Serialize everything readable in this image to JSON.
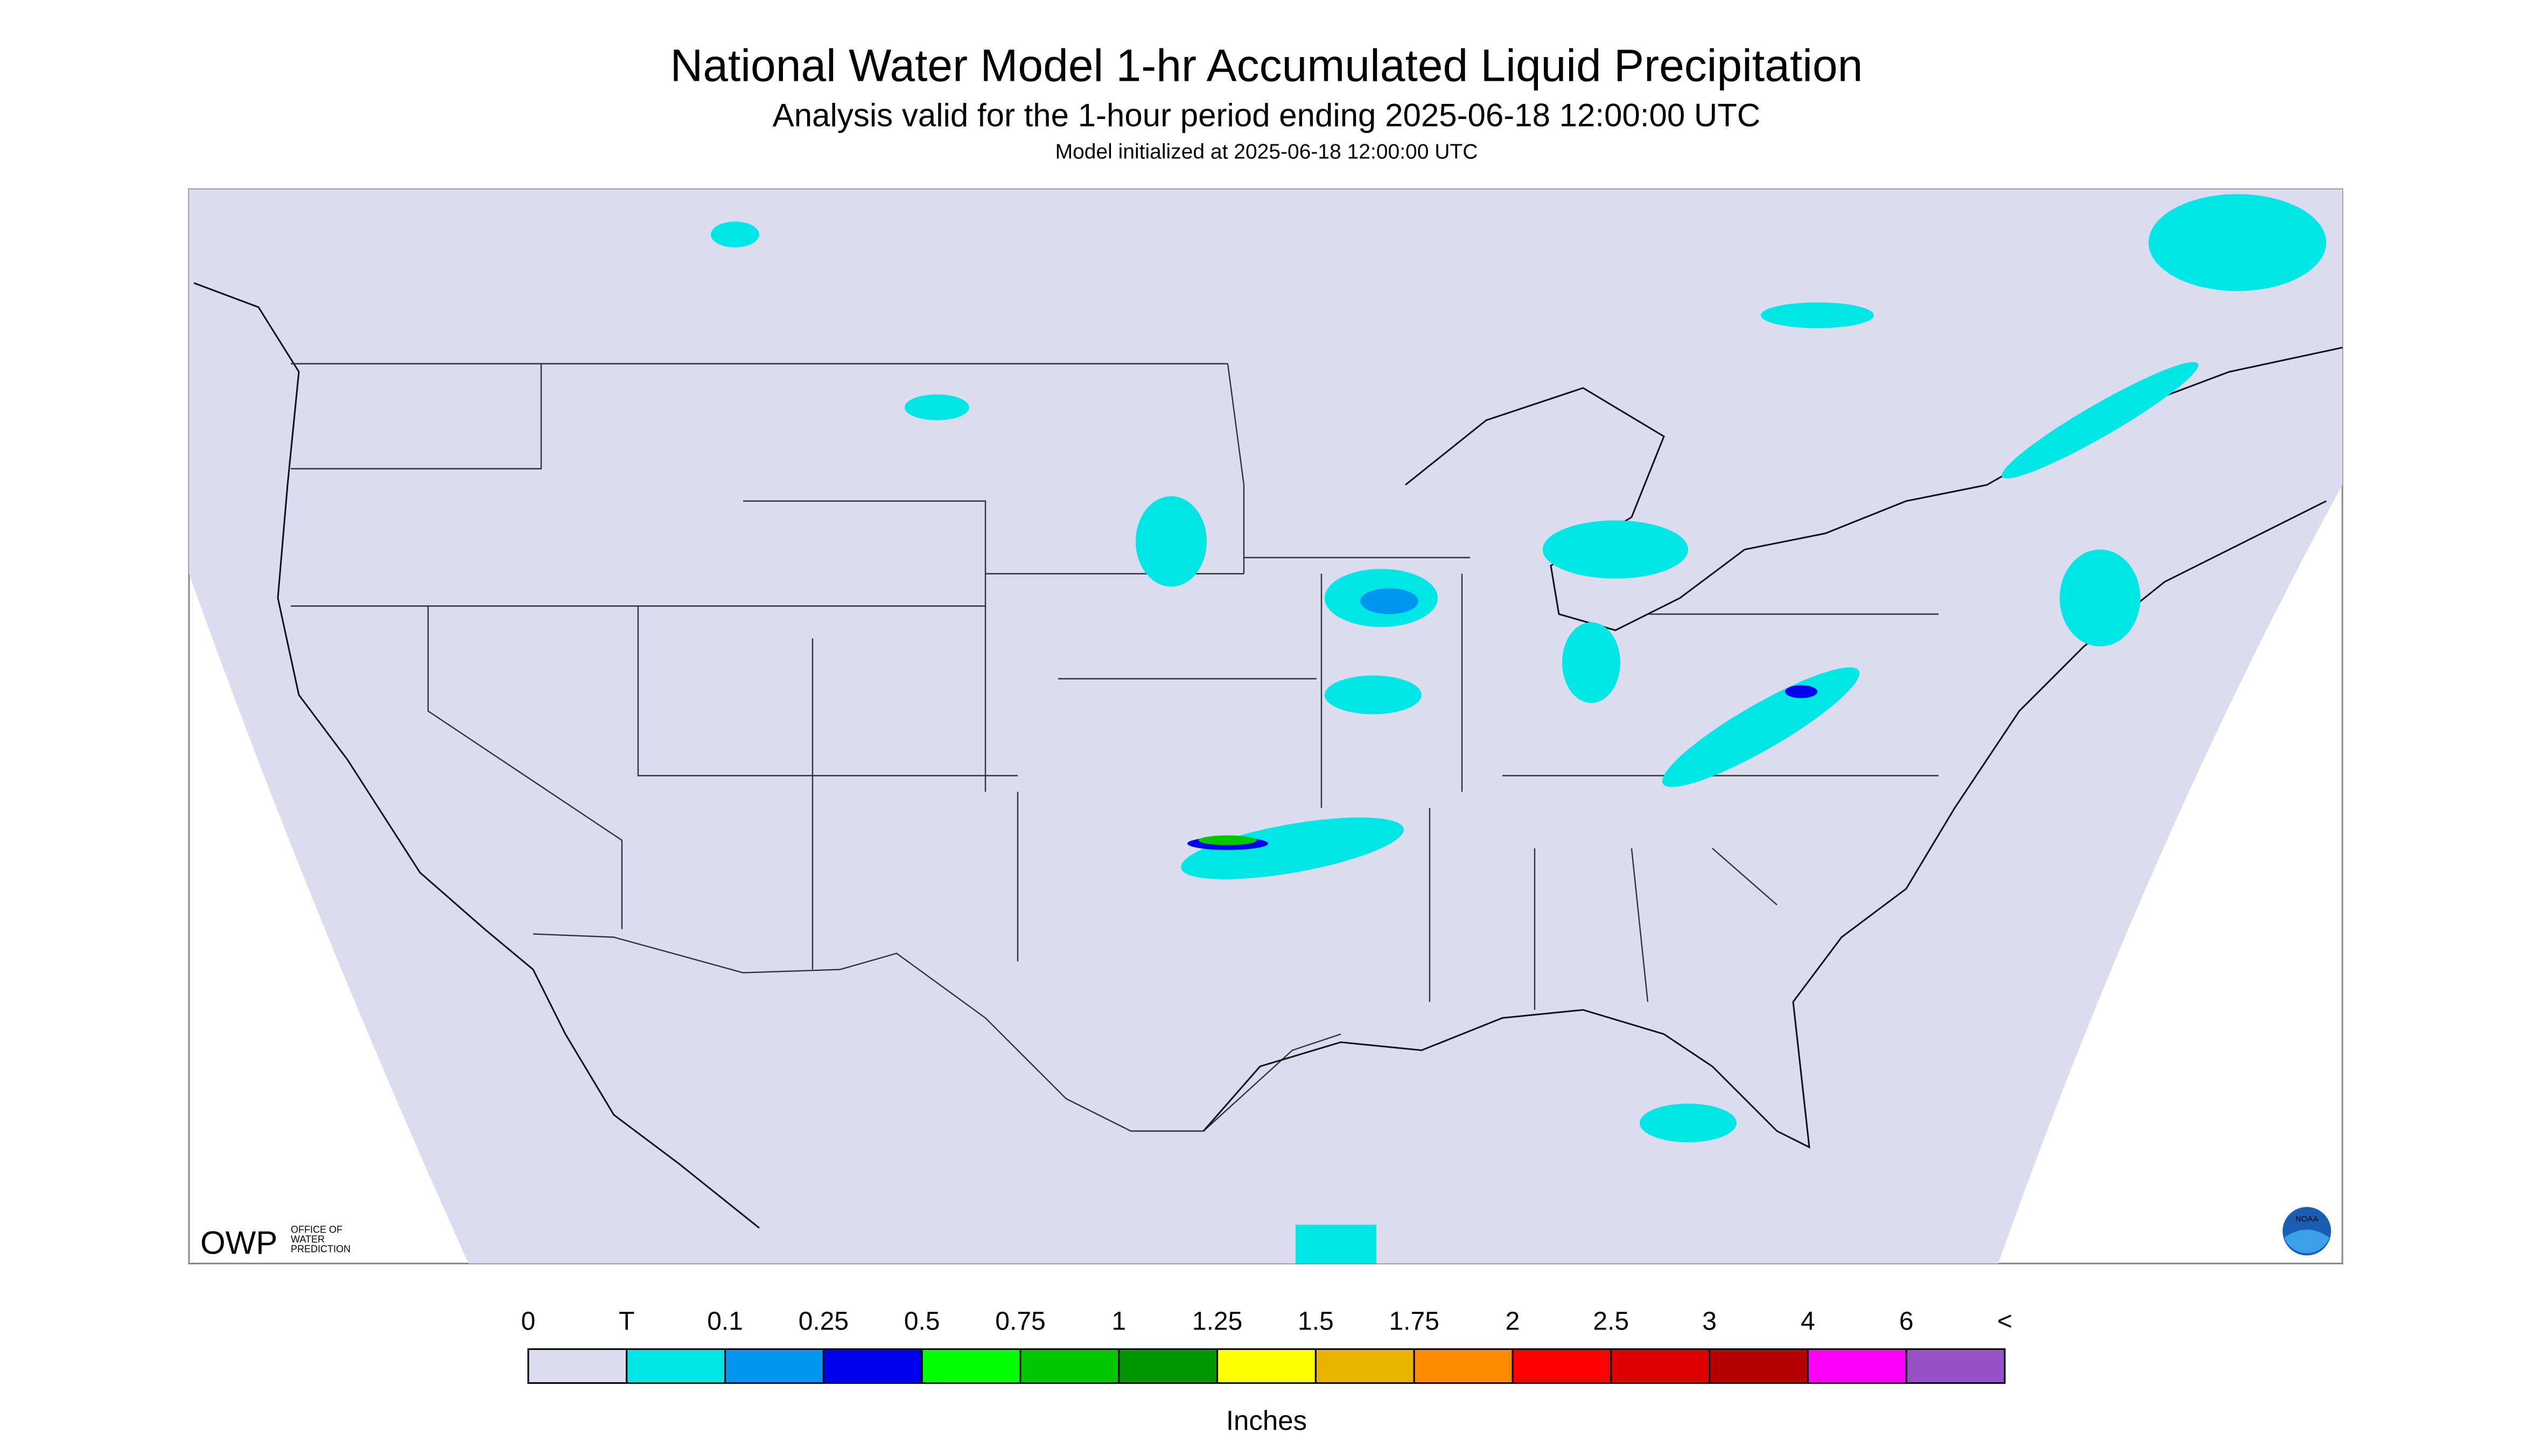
{
  "header": {
    "title": "National Water Model 1-hr Accumulated Liquid Precipitation",
    "subtitle": "Analysis valid for the 1-hour period ending 2025-06-18 12:00:00 UTC",
    "init": "Model initialized at 2025-06-18 12:00:00 UTC"
  },
  "legend": {
    "labels": [
      "0",
      "T",
      "0.1",
      "0.25",
      "0.5",
      "0.75",
      "1",
      "1.25",
      "1.5",
      "1.75",
      "2",
      "2.5",
      "3",
      "4",
      "6",
      "<"
    ],
    "colors": [
      "#dcdcf0",
      "#00e6e6",
      "#0096f0",
      "#0000f0",
      "#00ff00",
      "#00c800",
      "#009600",
      "#ffff00",
      "#e6b400",
      "#ff8c00",
      "#ff0000",
      "#dc0000",
      "#b40000",
      "#ff00ff",
      "#9650c8"
    ],
    "unit": "Inches"
  },
  "logos": {
    "owp": "OWP",
    "owp_text": [
      "OFFICE OF",
      "WATER",
      "PREDICTION"
    ],
    "noaa": "NOAA"
  }
}
